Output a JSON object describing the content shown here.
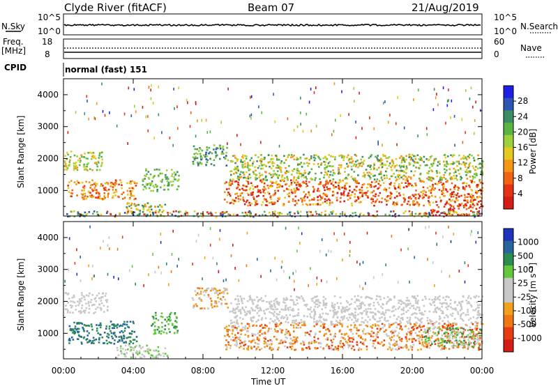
{
  "header": {
    "station": "Clyde River (fitACF)",
    "beam": "Beam 07",
    "date": "21/Aug/2019"
  },
  "noise_panel": {
    "left_label": "N.Sky",
    "left_ticks": [
      "10^5",
      "10^0"
    ],
    "right_ticks": [
      "10^5",
      "10^0"
    ],
    "right_label": "N.Search"
  },
  "freq_panel": {
    "left_label_1": "Freq.",
    "left_label_2": "[MHz]",
    "left_ticks": [
      "18",
      "8"
    ],
    "right_ticks": [
      "60",
      "0"
    ],
    "right_label": "Nave"
  },
  "cpid": {
    "label": "CPID",
    "value": "normal (fast) 151"
  },
  "chart_data": [
    {
      "type": "heatmap",
      "name": "power",
      "ylabel": "Slant Range [km]",
      "yticks": [
        "4000",
        "3000",
        "2000",
        "1000"
      ],
      "ylim": [
        200,
        4500
      ],
      "xlim_hours": [
        0,
        24
      ],
      "colorbar_label": "Power [dB]",
      "colorbar_ticks": [
        "28",
        "24",
        "20",
        "16",
        "12",
        "8",
        "4"
      ],
      "colorbar_colors": [
        "#1e1ee6",
        "#2d55b4",
        "#3c8c64",
        "#5ab446",
        "#9bd23c",
        "#e6c81e",
        "#f59614",
        "#f06414",
        "#e63214",
        "#d21e14"
      ],
      "scatter_bands": [
        {
          "t0": 0.0,
          "t1": 2.2,
          "r0": 1650,
          "r1": 2250,
          "levels": [
            3,
            4,
            5,
            6
          ]
        },
        {
          "t0": 0.2,
          "t1": 4.2,
          "r0": 750,
          "r1": 1350,
          "levels": [
            6,
            7,
            8,
            5
          ]
        },
        {
          "t0": 3.5,
          "t1": 5.8,
          "r0": 250,
          "r1": 650,
          "levels": [
            2,
            3,
            5,
            6
          ]
        },
        {
          "t0": 4.5,
          "t1": 6.6,
          "r0": 1000,
          "r1": 1700,
          "levels": [
            2,
            3,
            4
          ]
        },
        {
          "t0": 7.3,
          "t1": 9.4,
          "r0": 1800,
          "r1": 2450,
          "levels": [
            1,
            2,
            3,
            4
          ]
        },
        {
          "t0": 9.2,
          "t1": 24.0,
          "r0": 550,
          "r1": 1350,
          "levels": [
            5,
            6,
            7,
            8,
            9
          ]
        },
        {
          "t0": 9.5,
          "t1": 24.0,
          "r0": 1350,
          "r1": 2150,
          "levels": [
            2,
            3,
            4,
            5,
            6
          ]
        },
        {
          "t0": 21.0,
          "t1": 24.0,
          "r0": 250,
          "r1": 600,
          "levels": [
            7,
            8,
            9
          ]
        },
        {
          "t0": 0.0,
          "t1": 24.0,
          "r0": 200,
          "r1": 380,
          "levels": [
            1,
            3,
            5,
            8
          ]
        }
      ]
    },
    {
      "type": "heatmap",
      "name": "velocity",
      "ylabel": "Slant Range [km]",
      "yticks": [
        "4000",
        "3000",
        "2000",
        "1000"
      ],
      "ylim": [
        200,
        4500
      ],
      "xlim_hours": [
        0,
        24
      ],
      "colorbar_label": "Velocity [m s⁻¹]",
      "colorbar_ticks": [
        "1000",
        "500",
        "100",
        "25",
        "-25",
        "-100",
        "-500",
        "-1000"
      ],
      "colorbar_colors": [
        "#1e32be",
        "#2864a0",
        "#2d8c50",
        "#64c83c",
        "#c8c8c8",
        "#c8c8c8",
        "#f0a01e",
        "#f07814",
        "#e63c14",
        "#d21e14"
      ],
      "scatter_bands": [
        {
          "t0": 0.0,
          "t1": 2.5,
          "r0": 1650,
          "r1": 2300,
          "levels": [
            4,
            5
          ]
        },
        {
          "t0": 0.2,
          "t1": 4.2,
          "r0": 700,
          "r1": 1400,
          "levels": [
            2,
            1
          ]
        },
        {
          "t0": 3.0,
          "t1": 6.0,
          "r0": 250,
          "r1": 650,
          "levels": [
            4,
            5,
            3
          ]
        },
        {
          "t0": 5.0,
          "t1": 6.5,
          "r0": 1000,
          "r1": 1700,
          "levels": [
            2,
            3
          ]
        },
        {
          "t0": 7.3,
          "t1": 9.4,
          "r0": 1800,
          "r1": 2450,
          "levels": [
            6,
            7,
            4
          ]
        },
        {
          "t0": 9.2,
          "t1": 24.0,
          "r0": 500,
          "r1": 1350,
          "levels": [
            6,
            7,
            8,
            4
          ]
        },
        {
          "t0": 9.5,
          "t1": 24.0,
          "r0": 1350,
          "r1": 2200,
          "levels": [
            4,
            5
          ]
        },
        {
          "t0": 20.5,
          "t1": 24.0,
          "r0": 600,
          "r1": 1200,
          "levels": [
            2,
            3,
            4
          ]
        }
      ]
    }
  ],
  "x_axis": {
    "ticks": [
      "00:00",
      "04:00",
      "08:00",
      "12:00",
      "16:00",
      "20:00",
      "00:00"
    ],
    "label": "Time UT"
  }
}
